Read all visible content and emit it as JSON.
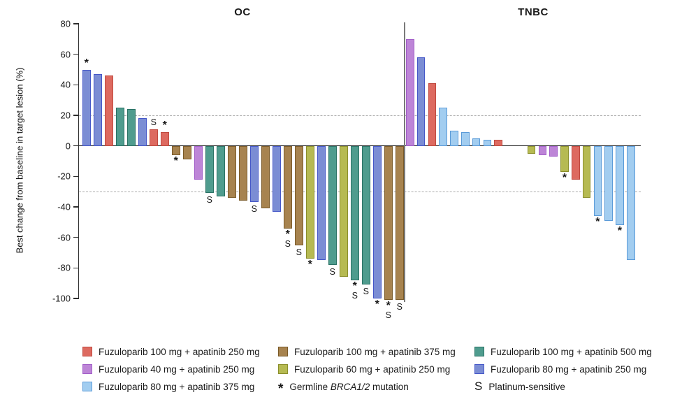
{
  "chart_data": {
    "type": "bar",
    "chart_kind": "waterfall",
    "ylabel": "Best change from baseline in target lesion (%)",
    "ylim": [
      -100,
      80
    ],
    "yticks": [
      80,
      60,
      40,
      20,
      0,
      -20,
      -40,
      -60,
      -80,
      -100
    ],
    "reference_lines": {
      "values": [
        20,
        -30
      ],
      "style": "dashed"
    },
    "grid": false,
    "marker_meanings": {
      "*": "Germline BRCA1/2 mutation",
      "S": "Platinum-sensitive"
    },
    "series_colors": {
      "f100a250": {
        "label": "Fuzuloparib 100 mg + apatinib 250 mg",
        "fill": "#dd6a60",
        "border": "#c04a40"
      },
      "f100a375": {
        "label": "Fuzuloparib 100 mg + apatinib 375 mg",
        "fill": "#a7834f",
        "border": "#7a5a28"
      },
      "f100a500": {
        "label": "Fuzuloparib 100 mg + apatinib 500 mg",
        "fill": "#4f9c8e",
        "border": "#2a7265"
      },
      "f40a250": {
        "label": "Fuzuloparib 40 mg + apatinib 250 mg",
        "fill": "#bd85d7",
        "border": "#a25fc8"
      },
      "f60a250": {
        "label": "Fuzuloparib 60 mg + apatinib 250 mg",
        "fill": "#b6ba52",
        "border": "#8b8f2c"
      },
      "f80a250": {
        "label": "Fuzuloparib 80 mg + apatinib 250 mg",
        "fill": "#7b8dd4",
        "border": "#4557c8"
      },
      "f80a375": {
        "label": "Fuzuloparib 80 mg + apatinib 375 mg",
        "fill": "#a2cdf0",
        "border": "#5b9bd8"
      }
    },
    "groups": [
      {
        "title": "OC",
        "bars": [
          {
            "v": 50,
            "c": "f80a250",
            "m": "*"
          },
          {
            "v": 47,
            "c": "f80a250",
            "m": ""
          },
          {
            "v": 46,
            "c": "f100a250",
            "m": ""
          },
          {
            "v": 25,
            "c": "f100a500",
            "m": ""
          },
          {
            "v": 24,
            "c": "f100a500",
            "m": ""
          },
          {
            "v": 18,
            "c": "f80a250",
            "m": ""
          },
          {
            "v": 11,
            "c": "f100a250",
            "m": "S"
          },
          {
            "v": 9,
            "c": "f100a250",
            "m": "*"
          },
          {
            "v": -6,
            "c": "f100a375",
            "m": "*"
          },
          {
            "v": -9,
            "c": "f100a375",
            "m": ""
          },
          {
            "v": -22,
            "c": "f40a250",
            "m": ""
          },
          {
            "v": -31,
            "c": "f100a500",
            "m": "S"
          },
          {
            "v": -33,
            "c": "f100a500",
            "m": ""
          },
          {
            "v": -34,
            "c": "f100a375",
            "m": ""
          },
          {
            "v": -36,
            "c": "f100a375",
            "m": ""
          },
          {
            "v": -37,
            "c": "f80a250",
            "m": "S"
          },
          {
            "v": -41,
            "c": "f100a375",
            "m": ""
          },
          {
            "v": -43,
            "c": "f80a250",
            "m": ""
          },
          {
            "v": -54,
            "c": "f100a375",
            "m": "*S"
          },
          {
            "v": -65,
            "c": "f100a375",
            "m": "S"
          },
          {
            "v": -74,
            "c": "f60a250",
            "m": "*"
          },
          {
            "v": -75,
            "c": "f80a250",
            "m": ""
          },
          {
            "v": -78,
            "c": "f100a500",
            "m": "S"
          },
          {
            "v": -86,
            "c": "f60a250",
            "m": ""
          },
          {
            "v": -88,
            "c": "f100a500",
            "m": "*S"
          },
          {
            "v": -91,
            "c": "f100a500",
            "m": "S"
          },
          {
            "v": -100,
            "c": "f80a250",
            "m": "*"
          },
          {
            "v": -101,
            "c": "f100a375",
            "m": "*S"
          },
          {
            "v": -101,
            "c": "f100a375",
            "m": "S"
          }
        ]
      },
      {
        "title": "TNBC",
        "gap_after_index": 8,
        "gap_slots": 2,
        "bars": [
          {
            "v": 70,
            "c": "f40a250",
            "m": ""
          },
          {
            "v": 58,
            "c": "f80a250",
            "m": ""
          },
          {
            "v": 41,
            "c": "f100a250",
            "m": ""
          },
          {
            "v": 25,
            "c": "f80a375",
            "m": ""
          },
          {
            "v": 10,
            "c": "f80a375",
            "m": ""
          },
          {
            "v": 9,
            "c": "f80a375",
            "m": ""
          },
          {
            "v": 5,
            "c": "f80a375",
            "m": ""
          },
          {
            "v": 4,
            "c": "f80a375",
            "m": ""
          },
          {
            "v": 4,
            "c": "f100a250",
            "m": ""
          },
          {
            "v": -5,
            "c": "f60a250",
            "m": ""
          },
          {
            "v": -6,
            "c": "f40a250",
            "m": ""
          },
          {
            "v": -7,
            "c": "f40a250",
            "m": ""
          },
          {
            "v": -17,
            "c": "f60a250",
            "m": "*"
          },
          {
            "v": -22,
            "c": "f100a250",
            "m": ""
          },
          {
            "v": -34,
            "c": "f60a250",
            "m": ""
          },
          {
            "v": -46,
            "c": "f80a375",
            "m": "*"
          },
          {
            "v": -49,
            "c": "f80a375",
            "m": ""
          },
          {
            "v": -52,
            "c": "f80a375",
            "m": "*"
          },
          {
            "v": -75,
            "c": "f80a375",
            "m": ""
          }
        ]
      }
    ],
    "legend": [
      {
        "kind": "swatch",
        "color": "f100a250",
        "label": "Fuzuloparib 100 mg + apatinib 250 mg",
        "label_italic": "",
        "label_post": ""
      },
      {
        "kind": "swatch",
        "color": "f100a375",
        "label": "Fuzuloparib 100 mg + apatinib 375 mg",
        "label_italic": "",
        "label_post": ""
      },
      {
        "kind": "swatch",
        "color": "f100a500",
        "label": "Fuzuloparib 100 mg + apatinib 500 mg",
        "label_italic": "",
        "label_post": ""
      },
      {
        "kind": "swatch",
        "color": "f40a250",
        "label": "Fuzuloparib 40 mg + apatinib 250 mg",
        "label_italic": "",
        "label_post": ""
      },
      {
        "kind": "swatch",
        "color": "f60a250",
        "label": "Fuzuloparib 60 mg + apatinib 250 mg",
        "label_italic": "",
        "label_post": ""
      },
      {
        "kind": "swatch",
        "color": "f80a250",
        "label": "Fuzuloparib 80 mg + apatinib 250 mg",
        "label_italic": "",
        "label_post": ""
      },
      {
        "kind": "swatch",
        "color": "f80a375",
        "label": "Fuzuloparib 80 mg + apatinib 375 mg",
        "label_italic": "",
        "label_post": ""
      },
      {
        "kind": "symbol",
        "symbol": "*",
        "label": "Germline ",
        "label_italic": "BRCA1/2",
        "label_post": " mutation"
      },
      {
        "kind": "symbol",
        "symbol": "S",
        "label": "Platinum-sensitive",
        "label_italic": "",
        "label_post": ""
      }
    ]
  }
}
